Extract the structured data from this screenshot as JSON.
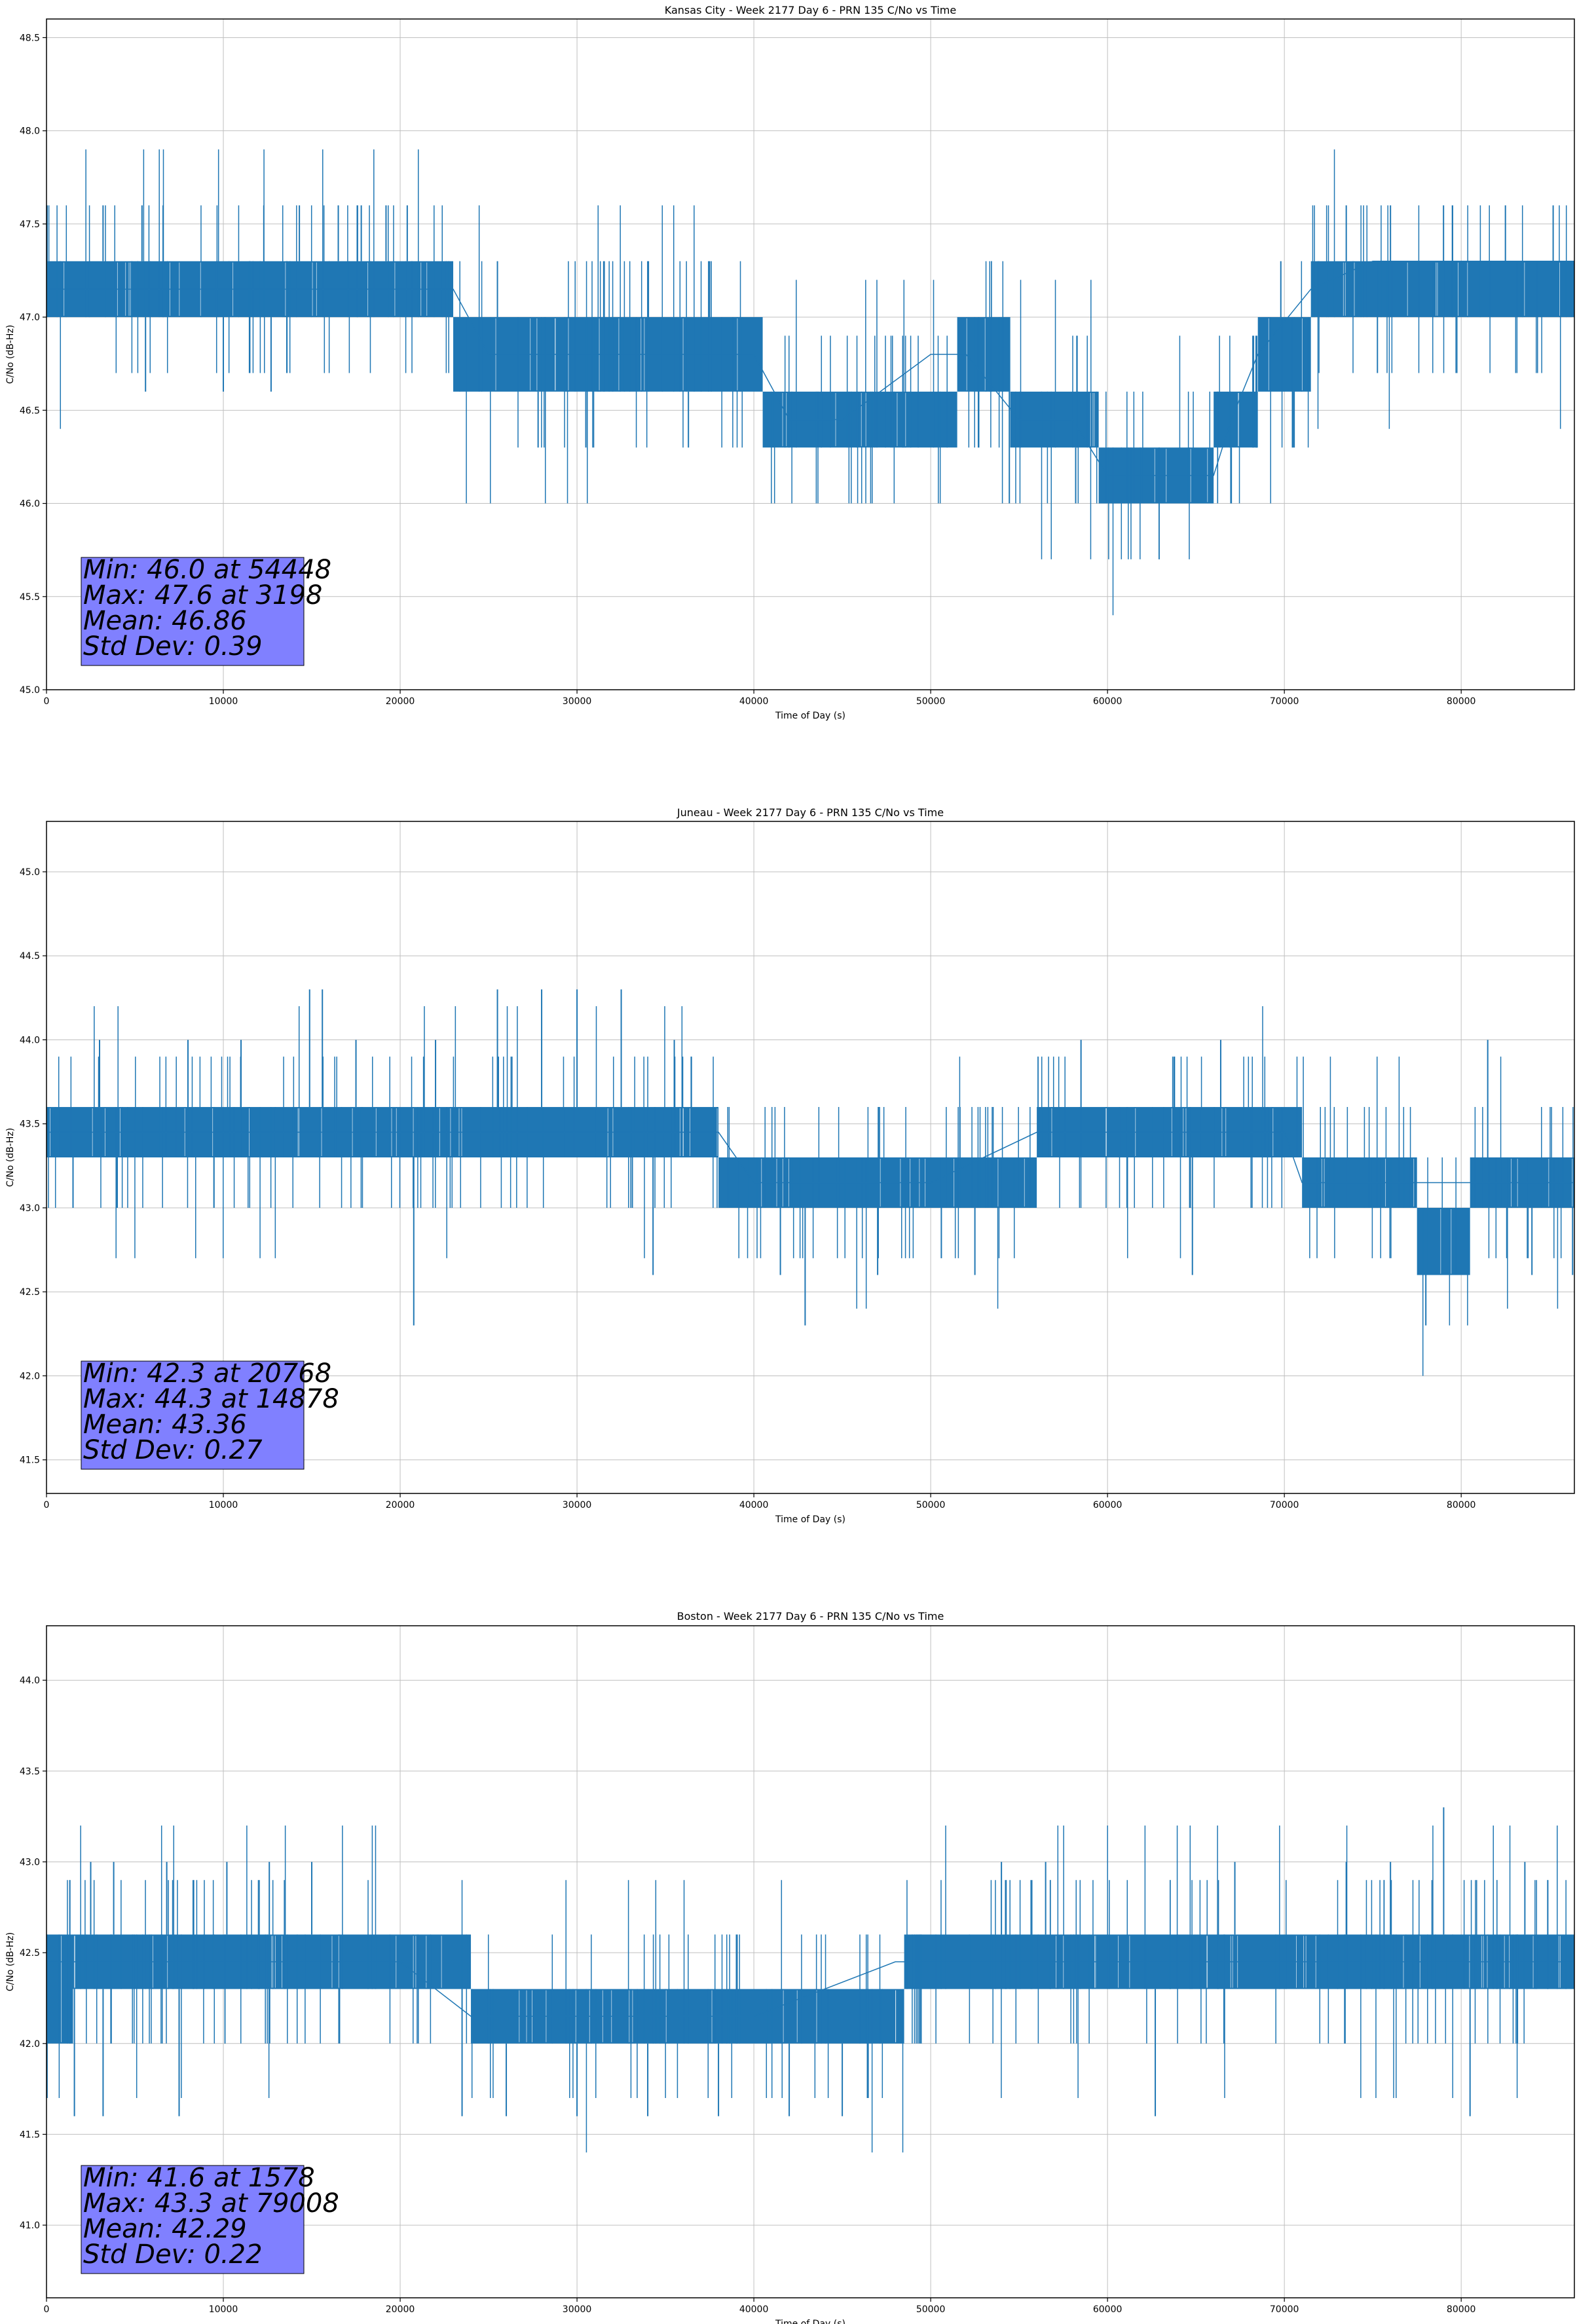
{
  "chart_data": [
    {
      "type": "line",
      "title": "Kansas City - Week 2177 Day 6 - PRN 135 C/No vs Time",
      "xlabel": "Time of Day (s)",
      "ylabel": "C/No (dB-Hz)",
      "xlim": [
        0,
        86400
      ],
      "ylim": [
        45.0,
        48.6
      ],
      "xticks": [
        0,
        10000,
        20000,
        30000,
        40000,
        50000,
        60000,
        70000,
        80000
      ],
      "yticks": [
        45.0,
        45.5,
        46.0,
        46.5,
        47.0,
        47.5,
        48.0,
        48.5
      ],
      "grid": true,
      "line_color": "#1f77b4",
      "series": [
        {
          "name": "C/No",
          "x": [
            0,
            5000,
            10000,
            15000,
            20000,
            23000,
            25000,
            30000,
            35000,
            40000,
            42000,
            45000,
            50000,
            52000,
            55000,
            58000,
            60000,
            63000,
            66000,
            67000,
            68500,
            71500,
            75000,
            80000,
            86400
          ],
          "y": [
            47.15,
            47.15,
            47.15,
            47.15,
            47.15,
            47.15,
            46.8,
            46.8,
            46.8,
            46.8,
            46.45,
            46.45,
            46.8,
            46.8,
            46.45,
            46.45,
            46.15,
            46.15,
            46.15,
            46.45,
            46.8,
            47.15,
            47.3,
            47.3,
            47.3
          ],
          "band": [
            {
              "x0": 0,
              "x1": 23000,
              "low": 47.0,
              "high": 47.3
            },
            {
              "x0": 23000,
              "x1": 40500,
              "low": 46.6,
              "high": 47.0
            },
            {
              "x0": 40500,
              "x1": 51500,
              "low": 46.3,
              "high": 46.6
            },
            {
              "x0": 51500,
              "x1": 54500,
              "low": 46.6,
              "high": 47.0
            },
            {
              "x0": 54500,
              "x1": 59500,
              "low": 46.3,
              "high": 46.6
            },
            {
              "x0": 59500,
              "x1": 66000,
              "low": 46.0,
              "high": 46.3
            },
            {
              "x0": 66000,
              "x1": 68500,
              "low": 46.3,
              "high": 46.6
            },
            {
              "x0": 68500,
              "x1": 71500,
              "low": 46.6,
              "high": 47.0
            },
            {
              "x0": 71500,
              "x1": 86400,
              "low": 47.0,
              "high": 47.3
            }
          ],
          "spikes": [
            {
              "x": 3198,
              "y": 47.6
            },
            {
              "x": 5400,
              "y": 47.6
            },
            {
              "x": 14300,
              "y": 47.6
            },
            {
              "x": 16500,
              "y": 47.6
            },
            {
              "x": 17800,
              "y": 47.6
            },
            {
              "x": 19200,
              "y": 47.6
            },
            {
              "x": 20400,
              "y": 47.6
            },
            {
              "x": 25500,
              "y": 47.3
            },
            {
              "x": 34000,
              "y": 47.3
            },
            {
              "x": 37500,
              "y": 47.3
            },
            {
              "x": 5600,
              "y": 46.6
            },
            {
              "x": 10000,
              "y": 46.6
            },
            {
              "x": 12700,
              "y": 46.6
            },
            {
              "x": 27800,
              "y": 46.3
            },
            {
              "x": 30500,
              "y": 46.3
            },
            {
              "x": 36300,
              "y": 46.3
            },
            {
              "x": 54448,
              "y": 46.0
            },
            {
              "x": 58200,
              "y": 46.0
            },
            {
              "x": 67000,
              "y": 46.0
            },
            {
              "x": 70500,
              "y": 46.3
            },
            {
              "x": 73500,
              "y": 47.6
            },
            {
              "x": 76000,
              "y": 47.6
            },
            {
              "x": 79000,
              "y": 47.6
            },
            {
              "x": 82500,
              "y": 47.6
            },
            {
              "x": 85200,
              "y": 47.6
            },
            {
              "x": 69800,
              "y": 47.3
            }
          ]
        }
      ],
      "stats": {
        "min": "Min: 46.0 at 54448",
        "max": "Max: 47.6 at 3198",
        "mean": "Mean: 46.86",
        "std": "Std Dev: 0.39"
      }
    },
    {
      "type": "line",
      "title": "Juneau - Week 2177 Day 6 - PRN 135 C/No vs Time",
      "xlabel": "Time of Day (s)",
      "ylabel": "C/No (dB-Hz)",
      "xlim": [
        0,
        86400
      ],
      "ylim": [
        41.3,
        45.3
      ],
      "xticks": [
        0,
        10000,
        20000,
        30000,
        40000,
        50000,
        60000,
        70000,
        80000
      ],
      "yticks": [
        41.5,
        42.0,
        42.5,
        43.0,
        43.5,
        44.0,
        44.5,
        45.0
      ],
      "grid": true,
      "line_color": "#1f77b4",
      "series": [
        {
          "name": "C/No",
          "x": [
            0,
            10000,
            20000,
            30000,
            38000,
            40000,
            50000,
            56000,
            60000,
            70000,
            71000,
            78000,
            86400
          ],
          "y": [
            43.45,
            43.45,
            43.45,
            43.45,
            43.45,
            43.15,
            43.15,
            43.45,
            43.45,
            43.45,
            43.15,
            43.15,
            43.15
          ],
          "band": [
            {
              "x0": 0,
              "x1": 38000,
              "low": 43.3,
              "high": 43.6
            },
            {
              "x0": 38000,
              "x1": 56000,
              "low": 43.0,
              "high": 43.3
            },
            {
              "x0": 56000,
              "x1": 71000,
              "low": 43.3,
              "high": 43.6
            },
            {
              "x0": 71000,
              "x1": 77500,
              "low": 43.0,
              "high": 43.3
            },
            {
              "x0": 77500,
              "x1": 80500,
              "low": 42.6,
              "high": 43.0
            },
            {
              "x0": 80500,
              "x1": 86400,
              "low": 43.0,
              "high": 43.3
            }
          ],
          "spikes": [
            {
              "x": 14878,
              "y": 44.3
            },
            {
              "x": 15600,
              "y": 44.3
            },
            {
              "x": 25500,
              "y": 44.3
            },
            {
              "x": 28000,
              "y": 44.3
            },
            {
              "x": 30000,
              "y": 44.3
            },
            {
              "x": 32500,
              "y": 44.3
            },
            {
              "x": 20768,
              "y": 42.3
            },
            {
              "x": 42900,
              "y": 42.3
            },
            {
              "x": 78000,
              "y": 42.3
            },
            {
              "x": 3000,
              "y": 44.0
            },
            {
              "x": 8000,
              "y": 44.0
            },
            {
              "x": 11000,
              "y": 44.0
            },
            {
              "x": 17500,
              "y": 44.0
            },
            {
              "x": 22000,
              "y": 44.0
            },
            {
              "x": 35500,
              "y": 44.0
            },
            {
              "x": 58500,
              "y": 44.0
            },
            {
              "x": 66400,
              "y": 44.0
            },
            {
              "x": 81500,
              "y": 44.0
            },
            {
              "x": 34300,
              "y": 42.6
            },
            {
              "x": 41500,
              "y": 42.6
            },
            {
              "x": 47000,
              "y": 42.6
            },
            {
              "x": 52500,
              "y": 42.6
            },
            {
              "x": 64800,
              "y": 42.6
            },
            {
              "x": 84000,
              "y": 42.6
            },
            {
              "x": 86300,
              "y": 42.6
            },
            {
              "x": 1500,
              "y": 43.0
            },
            {
              "x": 4000,
              "y": 43.0
            }
          ]
        }
      ],
      "stats": {
        "min": "Min: 42.3 at 20768",
        "max": "Max: 44.3 at 14878",
        "mean": "Mean: 43.36",
        "std": "Std Dev: 0.27"
      }
    },
    {
      "type": "line",
      "title": "Boston - Week 2177 Day 6 - PRN 135 C/No vs Time",
      "xlabel": "Time of Day (s)",
      "ylabel": "C/No (dB-Hz)",
      "xlim": [
        0,
        86400
      ],
      "ylim": [
        40.6,
        44.3
      ],
      "xticks": [
        0,
        10000,
        20000,
        30000,
        40000,
        50000,
        60000,
        70000,
        80000
      ],
      "yticks": [
        41.0,
        41.5,
        42.0,
        42.5,
        43.0,
        43.5,
        44.0
      ],
      "grid": true,
      "line_color": "#1f77b4",
      "series": [
        {
          "name": "C/No",
          "x": [
            0,
            10000,
            20000,
            24000,
            30000,
            40000,
            48000,
            50000,
            60000,
            70000,
            80000,
            86400
          ],
          "y": [
            42.45,
            42.45,
            42.45,
            42.15,
            42.15,
            42.15,
            42.45,
            42.45,
            42.45,
            42.45,
            42.45,
            42.45
          ],
          "band": [
            {
              "x0": 0,
              "x1": 1500,
              "low": 42.0,
              "high": 42.6
            },
            {
              "x0": 1500,
              "x1": 24000,
              "low": 42.3,
              "high": 42.6
            },
            {
              "x0": 24000,
              "x1": 48500,
              "low": 42.0,
              "high": 42.3
            },
            {
              "x0": 48500,
              "x1": 86400,
              "low": 42.3,
              "high": 42.6
            }
          ],
          "spikes": [
            {
              "x": 79008,
              "y": 43.3
            },
            {
              "x": 2500,
              "y": 43.0
            },
            {
              "x": 3800,
              "y": 43.0
            },
            {
              "x": 6800,
              "y": 43.0
            },
            {
              "x": 10200,
              "y": 43.0
            },
            {
              "x": 12600,
              "y": 43.0
            },
            {
              "x": 15000,
              "y": 43.0
            },
            {
              "x": 54000,
              "y": 43.0
            },
            {
              "x": 56500,
              "y": 43.0
            },
            {
              "x": 67200,
              "y": 43.0
            },
            {
              "x": 73500,
              "y": 43.0
            },
            {
              "x": 76000,
              "y": 43.0
            },
            {
              "x": 83600,
              "y": 43.0
            },
            {
              "x": 1578,
              "y": 41.6
            },
            {
              "x": 3200,
              "y": 41.6
            },
            {
              "x": 7500,
              "y": 41.6
            },
            {
              "x": 23500,
              "y": 41.6
            },
            {
              "x": 26000,
              "y": 41.6
            },
            {
              "x": 30000,
              "y": 41.6
            },
            {
              "x": 34000,
              "y": 41.6
            },
            {
              "x": 38000,
              "y": 41.6
            },
            {
              "x": 42000,
              "y": 41.6
            },
            {
              "x": 45000,
              "y": 41.6
            },
            {
              "x": 62700,
              "y": 41.6
            },
            {
              "x": 80500,
              "y": 41.6
            }
          ]
        }
      ],
      "stats": {
        "min": "Min: 41.6 at 1578",
        "max": "Max: 43.3 at 79008",
        "mean": "Mean: 42.29",
        "std": "Std Dev: 0.22"
      }
    }
  ]
}
